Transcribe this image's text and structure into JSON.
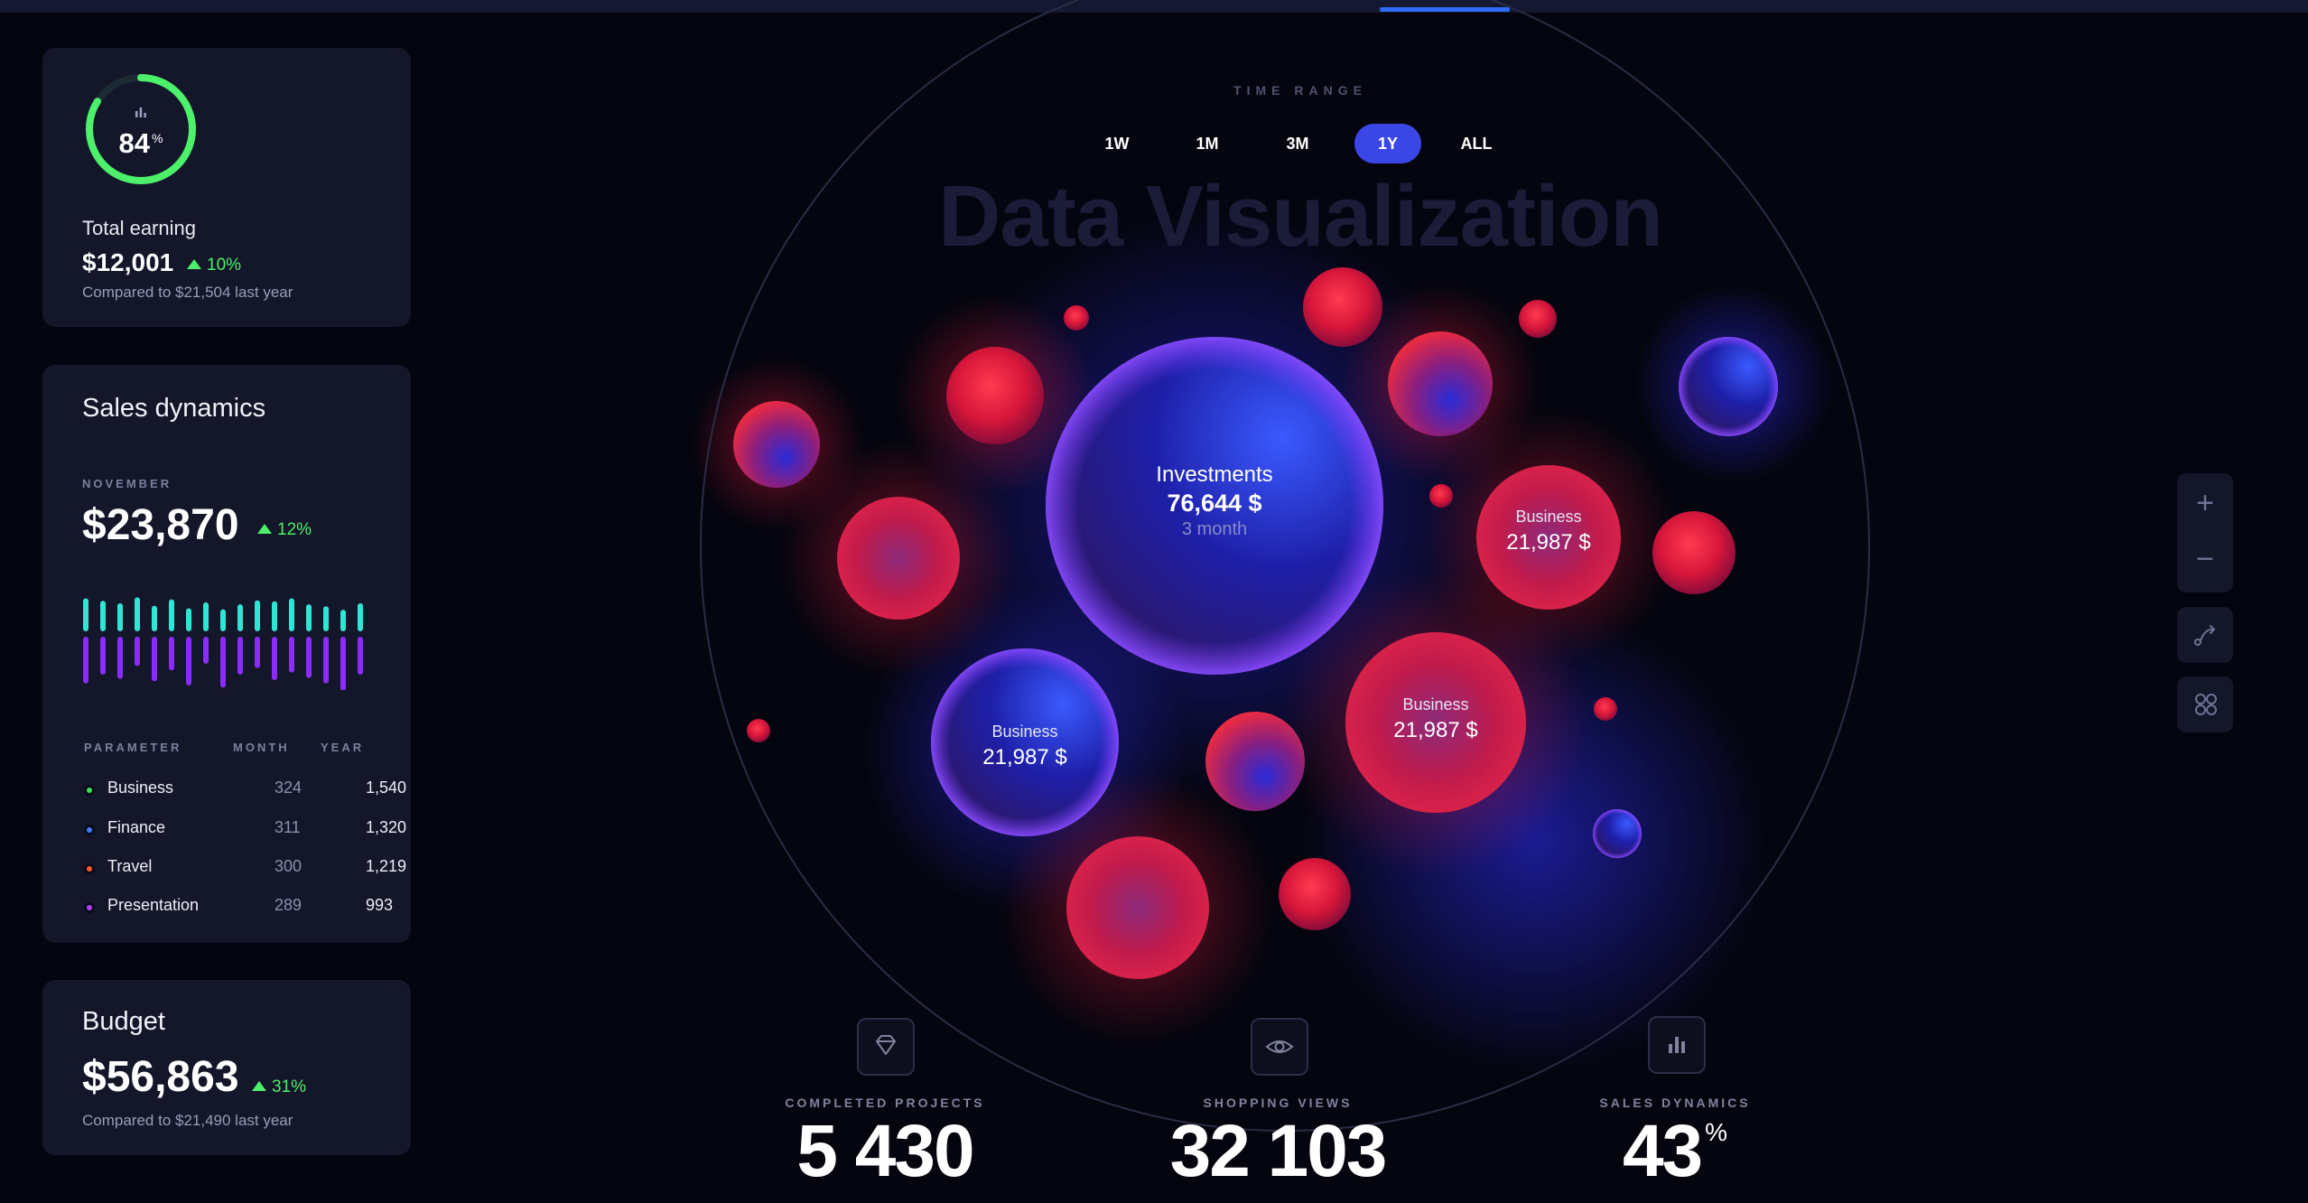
{
  "earning": {
    "progress_value": "84",
    "progress_fraction": 0.84,
    "progress_unit": "%",
    "title": "Total earning",
    "amount": "$12,001",
    "delta": "10%",
    "compare": "Compared to $21,504 last year"
  },
  "sales": {
    "title": "Sales dynamics",
    "period": "NOVEMBER",
    "amount": "$23,870",
    "delta": "12%",
    "table_headers": {
      "parameter": "PARAMETER",
      "month": "MONTH",
      "year": "YEAR"
    },
    "rows": [
      {
        "name": "Business",
        "month": "324",
        "year": "1,540",
        "color": "#3ce05a"
      },
      {
        "name": "Finance",
        "month": "311",
        "year": "1,320",
        "color": "#3f7dff"
      },
      {
        "name": "Travel",
        "month": "300",
        "year": "1,219",
        "color": "#ff5a2e"
      },
      {
        "name": "Presentation",
        "month": "289",
        "year": "993",
        "color": "#b040ff"
      }
    ]
  },
  "budget": {
    "title": "Budget",
    "amount": "$56,863",
    "delta": "31%",
    "compare": "Compared to $21,490 last year"
  },
  "viz": {
    "title": "Data Visualization",
    "time_range_label": "TIME RANGE",
    "ranges": [
      "1W",
      "1M",
      "3M",
      "1Y",
      "ALL"
    ],
    "active_range": "1Y",
    "bubbles": {
      "investments": {
        "label": "Investments",
        "value": "76,644 $",
        "sub": "3 month"
      },
      "business_right": {
        "label": "Business",
        "value": "21,987 $"
      },
      "business_center": {
        "label": "Business",
        "value": "21,987 $"
      },
      "business_left": {
        "label": "Business",
        "value": "21,987 $"
      }
    }
  },
  "stats": [
    {
      "label": "COMPLETED PROJECTS",
      "value": "5 430",
      "icon": "diamond-icon"
    },
    {
      "label": "SHOPPING VIEWS",
      "value": "32 103",
      "icon": "eye-icon"
    },
    {
      "label": "SALES DYNAMICS",
      "value": "43",
      "unit": "%",
      "icon": "bar-chart-icon"
    }
  ],
  "controls": {
    "zoom_in": "+",
    "zoom_out": "−"
  },
  "colors": {
    "accent": "#3a46e6",
    "positive": "#4cf06a",
    "card": "#141629",
    "ring": "#4cf06a"
  }
}
